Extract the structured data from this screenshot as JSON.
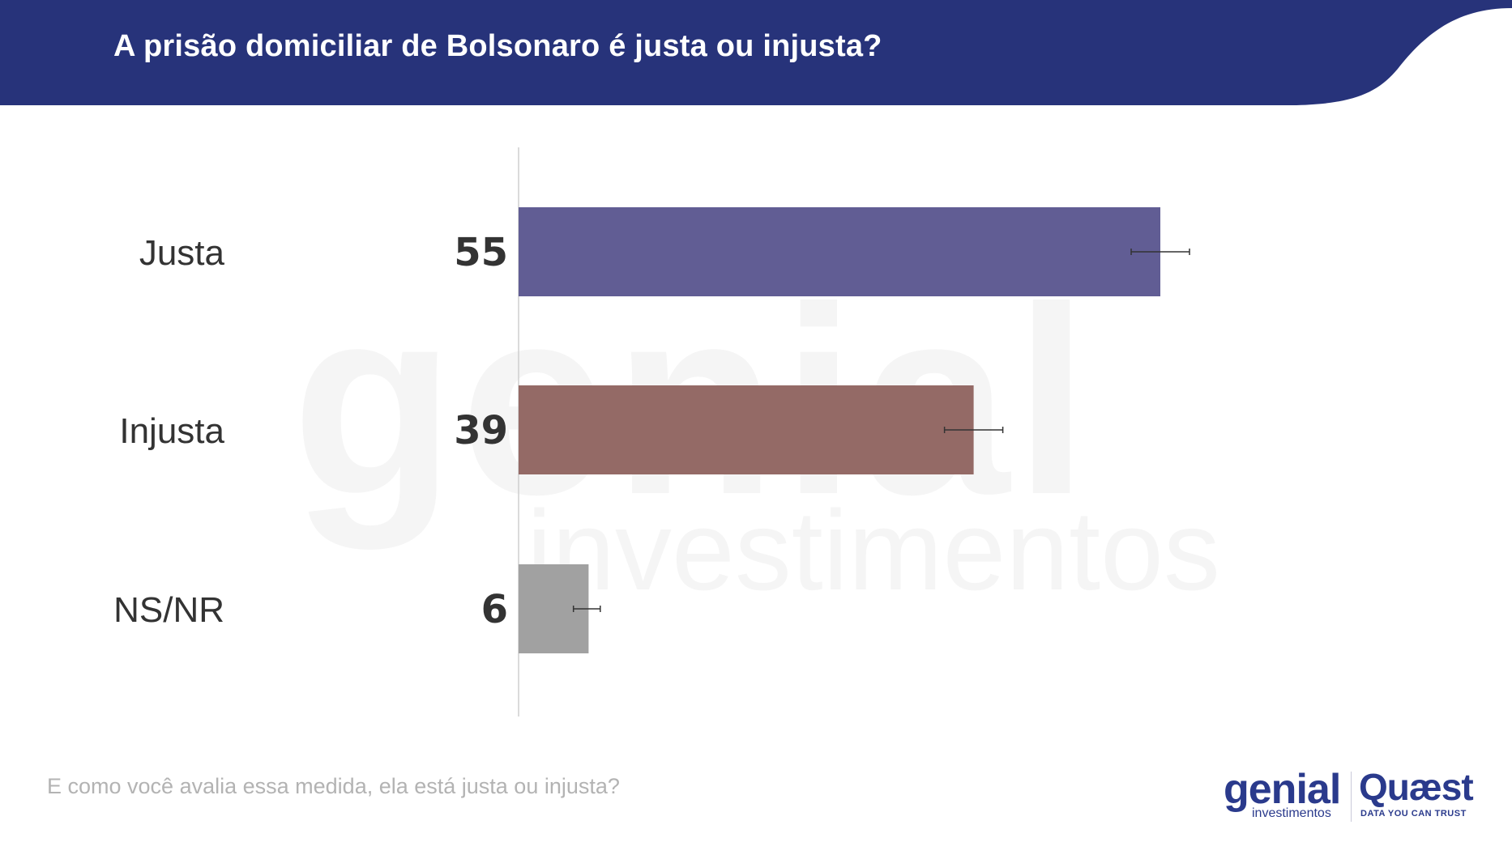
{
  "header": {
    "title": "A prisão domiciliar de Bolsonaro é justa ou injusta?",
    "color": "#27337a"
  },
  "chart_data": {
    "type": "bar",
    "orientation": "horizontal",
    "title": "A prisão domiciliar de Bolsonaro é justa ou injusta?",
    "categories": [
      "Justa",
      "Injusta",
      "NS/NR"
    ],
    "values": [
      55,
      39,
      6
    ],
    "error_bars": [
      [
        52.5,
        57.5
      ],
      [
        36.5,
        41.5
      ],
      [
        4.7,
        7.0
      ]
    ],
    "colors": [
      "#615d94",
      "#946a66",
      "#a1a1a1"
    ],
    "xlim": [
      0,
      82
    ],
    "grid": false,
    "legend": "none"
  },
  "footer": {
    "question": "E como você avalia essa medida, ela está justa ou injusta?"
  },
  "watermark": {
    "main": "genial",
    "sub": "investimentos"
  },
  "logos": {
    "genial": "genial",
    "genial_sub": "investimentos",
    "quaest": "Quæst",
    "quaest_tagline": "DATA YOU CAN TRUST"
  }
}
